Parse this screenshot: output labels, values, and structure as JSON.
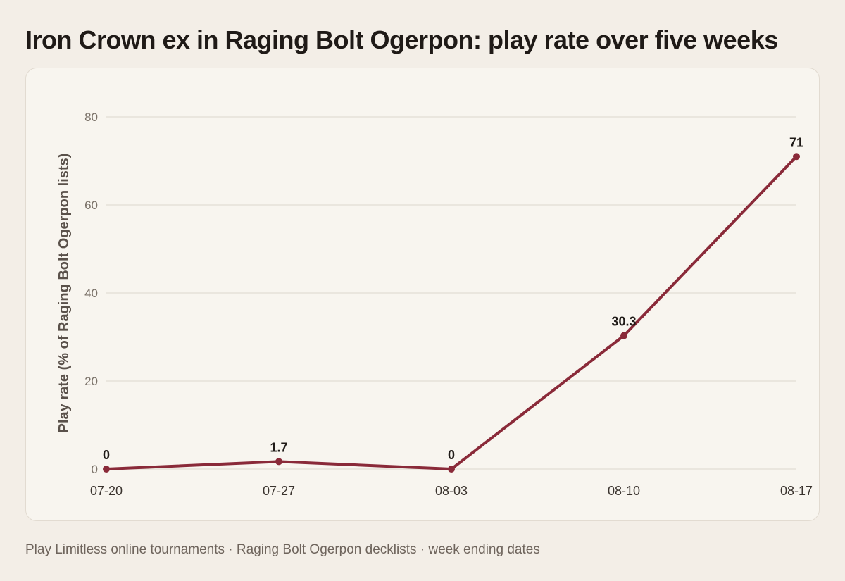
{
  "title": "Iron Crown ex in Raging Bolt Ogerpon: play rate over five weeks",
  "footer": "Play Limitless online tournaments · Raging Bolt Ogerpon decklists · week ending dates",
  "chart_data": {
    "type": "line",
    "title": "Iron Crown ex in Raging Bolt Ogerpon: play rate over five weeks",
    "xlabel": "",
    "ylabel": "Play rate (% of Raging Bolt Ogerpon lists)",
    "categories": [
      "07-20",
      "07-27",
      "08-03",
      "08-10",
      "08-17"
    ],
    "series": [
      {
        "values": [
          0,
          1.7,
          0,
          30.3,
          71
        ],
        "labels": [
          "0",
          "1.7",
          "0",
          "30.3",
          "71"
        ],
        "color": "#8a2a39"
      }
    ],
    "ylim": [
      0,
      80
    ],
    "yticks": [
      0,
      20,
      40,
      60,
      80
    ],
    "grid": true,
    "legend": "none"
  }
}
